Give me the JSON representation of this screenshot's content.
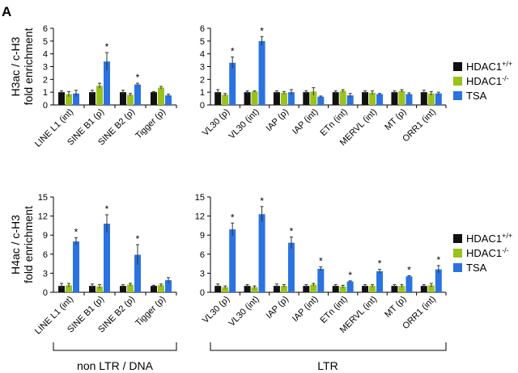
{
  "panel_label": "A",
  "legend": {
    "entries": [
      {
        "base": "HDAC1",
        "sup": "+/+",
        "color": "#111111"
      },
      {
        "base": "HDAC1",
        "sup": "-/-",
        "color": "#99c31c"
      },
      {
        "base": "TSA",
        "sup": "",
        "color": "#2a73e0"
      }
    ]
  },
  "groups": {
    "left": "non LTR / DNA",
    "right": "LTR"
  },
  "chart_data": [
    {
      "type": "bar",
      "panel": "top-left",
      "ylabel": [
        "H3ac / c-H3",
        "fold enrichment"
      ],
      "ylim": [
        0,
        6
      ],
      "yticks": [
        "0",
        "1",
        "2",
        "3",
        "4",
        "5",
        "6"
      ],
      "categories": [
        "LINE L1 (int)",
        "SINE B1 (p)",
        "SINE B2 (p)",
        "Tigger (p)"
      ],
      "series": [
        {
          "name": "HDAC1+/+",
          "values": [
            1.0,
            1.0,
            1.0,
            1.0
          ],
          "errors": [
            0.1,
            0.15,
            0.15,
            0.05
          ]
        },
        {
          "name": "HDAC1-/-",
          "values": [
            0.85,
            1.5,
            0.8,
            1.35
          ],
          "errors": [
            0.2,
            0.2,
            0.1,
            0.1
          ]
        },
        {
          "name": "TSA",
          "values": [
            0.9,
            3.4,
            1.6,
            0.75
          ],
          "errors": [
            0.25,
            0.7,
            0.1,
            0.1
          ]
        }
      ],
      "significance": [
        "",
        "*",
        "*",
        ""
      ]
    },
    {
      "type": "bar",
      "panel": "top-right",
      "ylim": [
        0,
        6
      ],
      "yticks": [
        "0",
        "1",
        "2",
        "3",
        "4",
        "5",
        "6"
      ],
      "categories": [
        "VL30 (p)",
        "VL30 (int)",
        "IAP (p)",
        "IAP (int)",
        "ETn (int)",
        "MERVL (int)",
        "MT (p)",
        "ORR1 (int)"
      ],
      "series": [
        {
          "name": "HDAC1+/+",
          "values": [
            1.0,
            1.0,
            1.0,
            1.0,
            1.0,
            1.0,
            1.0,
            1.0
          ],
          "errors": [
            0.2,
            0.1,
            0.1,
            0.1,
            0.1,
            0.1,
            0.1,
            0.15
          ]
        },
        {
          "name": "HDAC1-/-",
          "values": [
            0.8,
            1.05,
            0.95,
            1.05,
            1.1,
            0.95,
            1.1,
            0.9
          ],
          "errors": [
            0.1,
            0.05,
            0.1,
            0.3,
            0.1,
            0.15,
            0.1,
            0.15
          ]
        },
        {
          "name": "TSA",
          "values": [
            3.3,
            5.0,
            1.0,
            0.65,
            0.75,
            0.85,
            0.85,
            0.9
          ],
          "errors": [
            0.45,
            0.35,
            0.2,
            0.05,
            0.15,
            0.05,
            0.1,
            0.1
          ]
        }
      ],
      "significance": [
        "*",
        "*",
        "",
        "",
        "",
        "",
        "",
        ""
      ]
    },
    {
      "type": "bar",
      "panel": "bottom-left",
      "ylabel": [
        "H4ac / c-H3",
        "fold enrichment"
      ],
      "ylim": [
        0,
        15
      ],
      "yticks": [
        "0",
        "3",
        "6",
        "9",
        "12",
        "15"
      ],
      "categories": [
        "LINE L1 (int)",
        "SINE B1 (p)",
        "SINE B2 (p)",
        "Tigger (p)"
      ],
      "series": [
        {
          "name": "HDAC1+/+",
          "values": [
            1.0,
            1.0,
            1.0,
            1.0
          ],
          "errors": [
            0.4,
            0.3,
            0.2,
            0.1
          ]
        },
        {
          "name": "HDAC1-/-",
          "values": [
            1.1,
            0.9,
            1.2,
            1.1
          ],
          "errors": [
            0.3,
            0.3,
            0.2,
            0.2
          ]
        },
        {
          "name": "TSA",
          "values": [
            8.0,
            10.8,
            5.9,
            1.9
          ],
          "errors": [
            0.6,
            1.4,
            1.6,
            0.4
          ]
        }
      ],
      "significance": [
        "*",
        "*",
        "*",
        ""
      ]
    },
    {
      "type": "bar",
      "panel": "bottom-right",
      "ylim": [
        0,
        15
      ],
      "yticks": [
        "0",
        "3",
        "6",
        "9",
        "12",
        "15"
      ],
      "categories": [
        "VL30 (p)",
        "VL30 (int)",
        "IAP (p)",
        "IAP (int)",
        "ETn (int)",
        "MERVL (int)",
        "MT (p)",
        "ORR1 (int)"
      ],
      "series": [
        {
          "name": "HDAC1+/+",
          "values": [
            1.0,
            1.0,
            1.0,
            1.0,
            1.0,
            1.0,
            1.0,
            1.0
          ],
          "errors": [
            0.3,
            0.2,
            0.3,
            0.2,
            0.2,
            0.2,
            0.2,
            0.2
          ]
        },
        {
          "name": "HDAC1-/-",
          "values": [
            0.8,
            0.8,
            1.0,
            1.2,
            0.9,
            1.0,
            1.0,
            1.1
          ],
          "errors": [
            0.2,
            0.2,
            0.2,
            0.2,
            0.2,
            0.2,
            0.2,
            0.3
          ]
        },
        {
          "name": "TSA",
          "values": [
            9.9,
            12.3,
            7.8,
            3.7,
            1.7,
            3.3,
            2.5,
            3.6
          ],
          "errors": [
            1.0,
            1.2,
            0.9,
            0.3,
            0.1,
            0.3,
            0.1,
            0.6
          ]
        }
      ],
      "significance": [
        "*",
        "*",
        "*",
        "*",
        "*",
        "*",
        "*",
        "*"
      ]
    }
  ]
}
